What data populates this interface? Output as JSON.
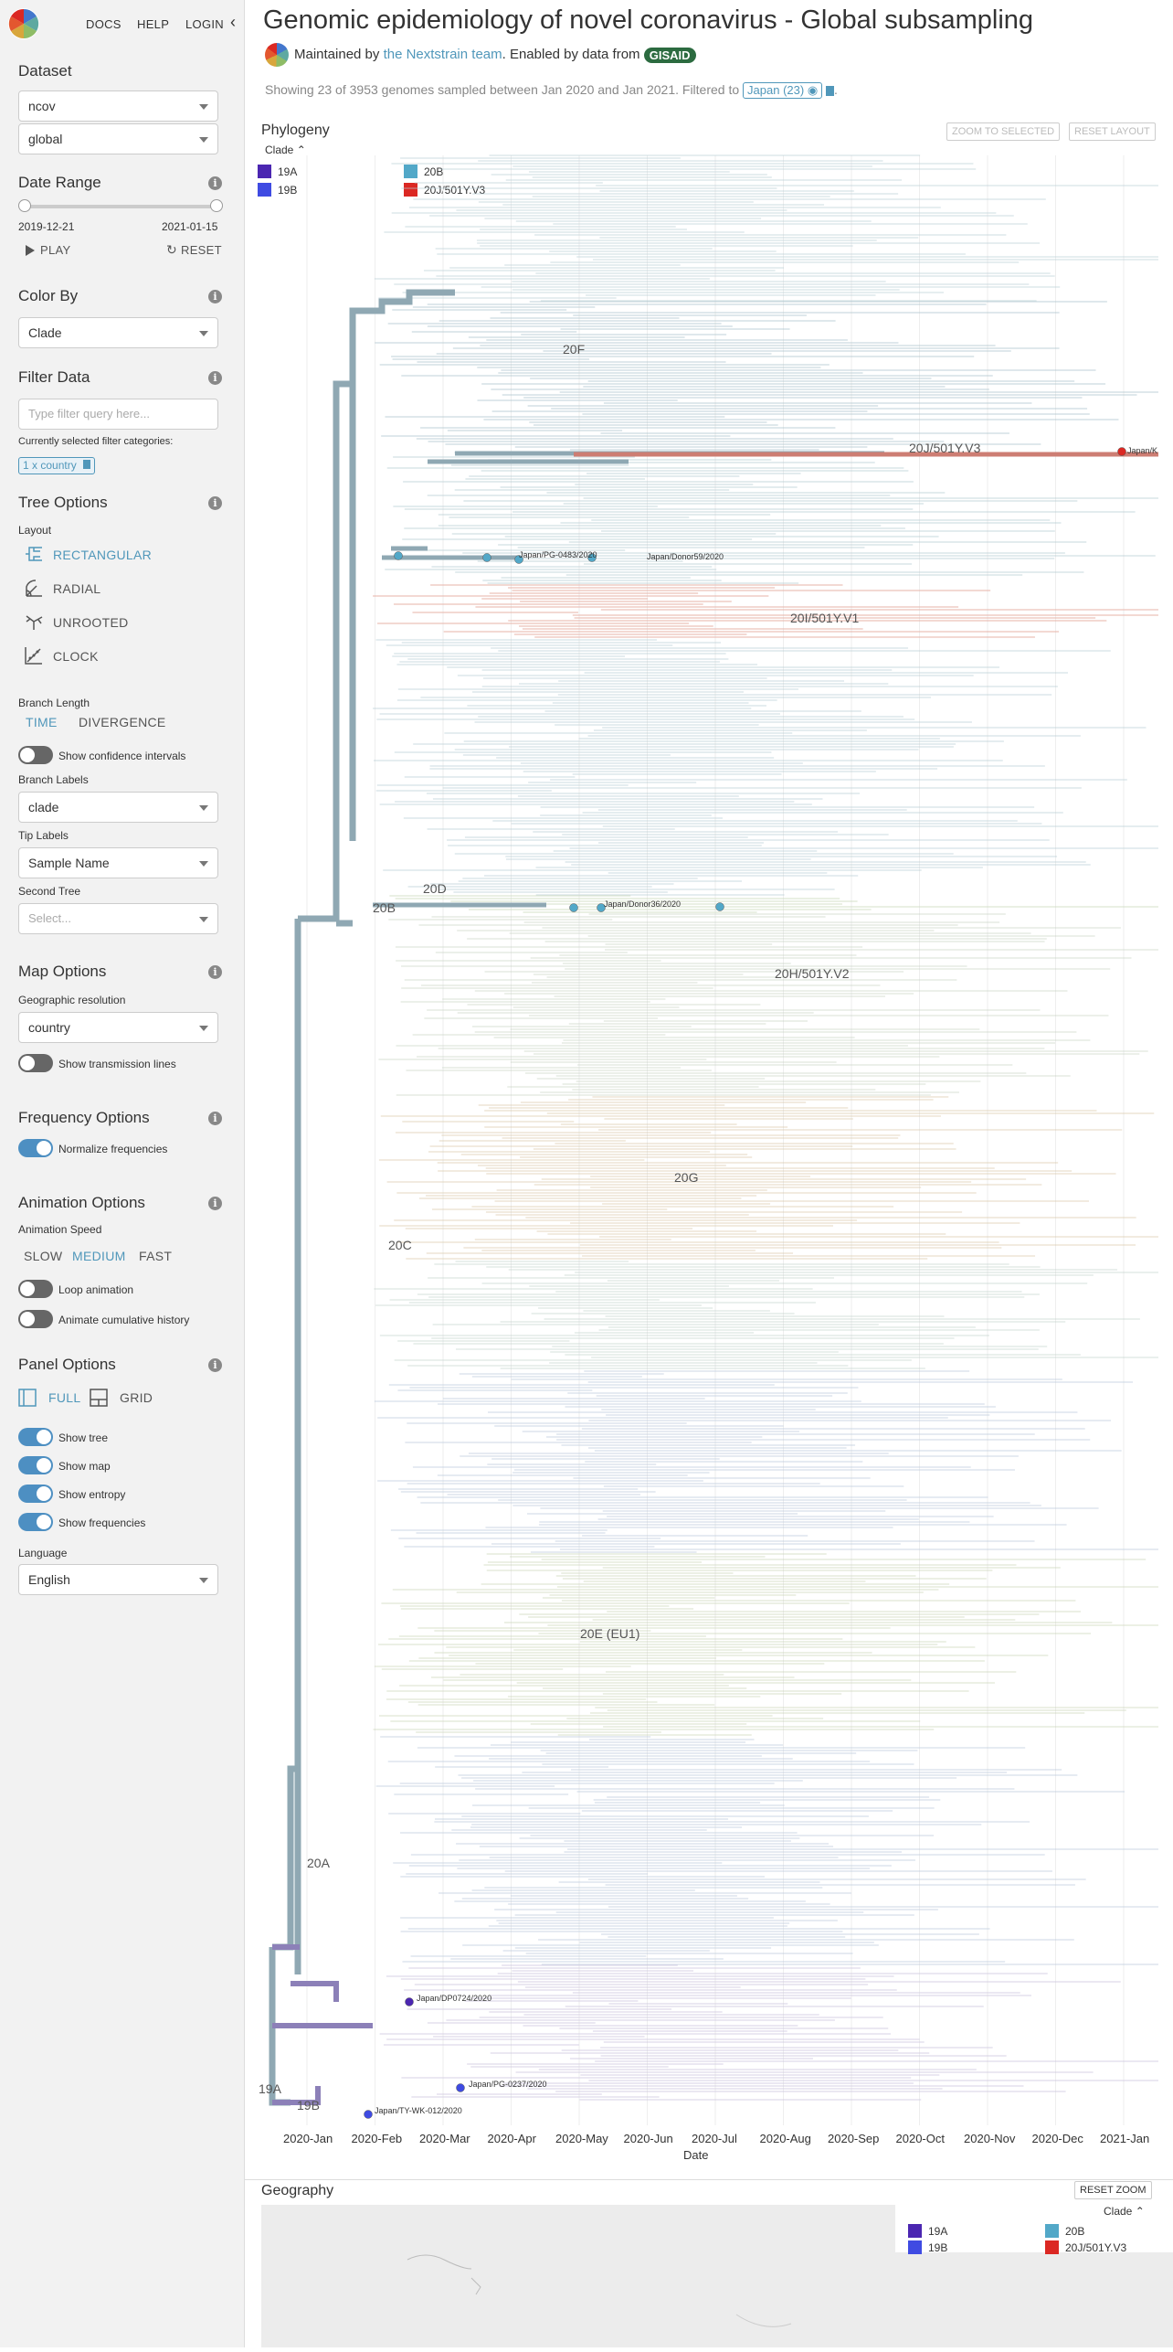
{
  "nav": {
    "docs": "DOCS",
    "help": "HELP",
    "login": "LOGIN",
    "collapse": "‹"
  },
  "dataset": {
    "title": "Dataset",
    "primary": "ncov",
    "secondary": "global"
  },
  "date_range": {
    "title": "Date Range",
    "start": "2019-12-21",
    "end": "2021-01-15",
    "play": "PLAY",
    "reset": "RESET"
  },
  "color_by": {
    "title": "Color By",
    "value": "Clade"
  },
  "filter": {
    "title": "Filter Data",
    "placeholder": "Type filter query here...",
    "current_label": "Currently selected filter categories:",
    "chip": "1 x country"
  },
  "tree_options": {
    "title": "Tree Options",
    "layout_label": "Layout",
    "layouts": [
      "RECTANGULAR",
      "RADIAL",
      "UNROOTED",
      "CLOCK"
    ],
    "branch_length_label": "Branch Length",
    "time": "TIME",
    "divergence": "DIVERGENCE",
    "confidence": "Show confidence intervals",
    "branch_labels_label": "Branch Labels",
    "branch_labels_value": "clade",
    "tip_labels_label": "Tip Labels",
    "tip_labels_value": "Sample Name",
    "second_tree_label": "Second Tree",
    "second_tree_placeholder": "Select..."
  },
  "map_options": {
    "title": "Map Options",
    "resolution_label": "Geographic resolution",
    "resolution_value": "country",
    "transmission": "Show transmission lines"
  },
  "frequency_options": {
    "title": "Frequency Options",
    "normalize": "Normalize frequencies"
  },
  "animation_options": {
    "title": "Animation Options",
    "speed_label": "Animation Speed",
    "slow": "SLOW",
    "medium": "MEDIUM",
    "fast": "FAST",
    "loop": "Loop animation",
    "cumulative": "Animate cumulative history"
  },
  "panel_options": {
    "title": "Panel Options",
    "full": "FULL",
    "grid": "GRID",
    "show_tree": "Show tree",
    "show_map": "Show map",
    "show_entropy": "Show entropy",
    "show_frequencies": "Show frequencies"
  },
  "language": {
    "label": "Language",
    "value": "English"
  },
  "header": {
    "title": "Genomic epidemiology of novel coronavirus - Global subsampling",
    "maintained_prefix": "Maintained by ",
    "team": "the Nextstrain team",
    "enabled": ". Enabled by data from ",
    "gisaid": "GISAID",
    "showing": "Showing 23 of 3953 genomes sampled between Jan 2020 and Jan 2021. Filtered to ",
    "filter_badge": "Japan (23)"
  },
  "phylogeny": {
    "title": "Phylogeny",
    "zoom_selected": "ZOOM TO SELECTED",
    "reset_layout": "RESET LAYOUT",
    "legend_title": "Clade",
    "legend": [
      {
        "name": "19A",
        "color": "#4B26B1"
      },
      {
        "name": "19B",
        "color": "#3F4BE2"
      },
      {
        "name": "20B",
        "color": "#52A8C8"
      },
      {
        "name": "20J/501Y.V3",
        "color": "#DB2823"
      }
    ],
    "clade_labels": [
      "20F",
      "20J/501Y.V3",
      "20I/501Y.V1",
      "20D",
      "20B",
      "20H/501Y.V2",
      "20G",
      "20C",
      "20E (EU1)",
      "20A",
      "19A",
      "19B"
    ],
    "tip_labels": [
      "Japan/PG-0483/2020",
      "Japan/Donor59/2020",
      "Japan/Donor36/2020",
      "Japan/DP0724/2020",
      "Japan/PG-0237/2020",
      "Japan/TY-WK-012/2020",
      "Japan/K"
    ],
    "x_label": "Date",
    "x_ticks": [
      "2020-Jan",
      "2020-Feb",
      "2020-Mar",
      "2020-Apr",
      "2020-May",
      "2020-Jun",
      "2020-Jul",
      "2020-Aug",
      "2020-Sep",
      "2020-Oct",
      "2020-Nov",
      "2020-Dec",
      "2021-Jan"
    ]
  },
  "geography": {
    "title": "Geography",
    "reset_zoom": "RESET ZOOM",
    "legend_title": "Clade"
  }
}
